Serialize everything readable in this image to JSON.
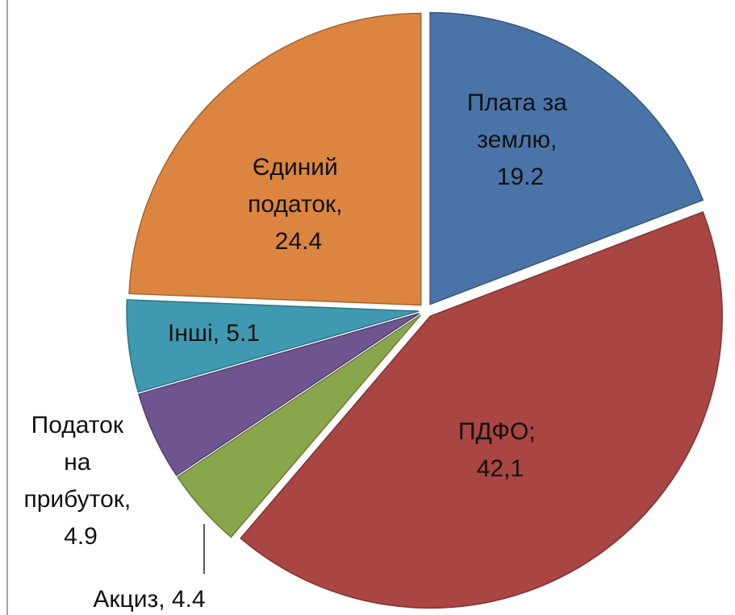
{
  "chart_data": {
    "type": "pie",
    "values": [
      19.2,
      42.1,
      4.4,
      4.9,
      5.1,
      24.4
    ],
    "value_labels": [
      "Плата за землю, 19.2",
      "ПДФО; 42,1",
      "Акциз, 4.4",
      "Податок на прибуток, 4.9",
      "Інші, 5.1",
      "Єдиний податок, 24.4"
    ],
    "colors": [
      "#4a74a8",
      "#a94543",
      "#8aa64b",
      "#6f5590",
      "#3f99b1",
      "#db8540"
    ]
  }
}
